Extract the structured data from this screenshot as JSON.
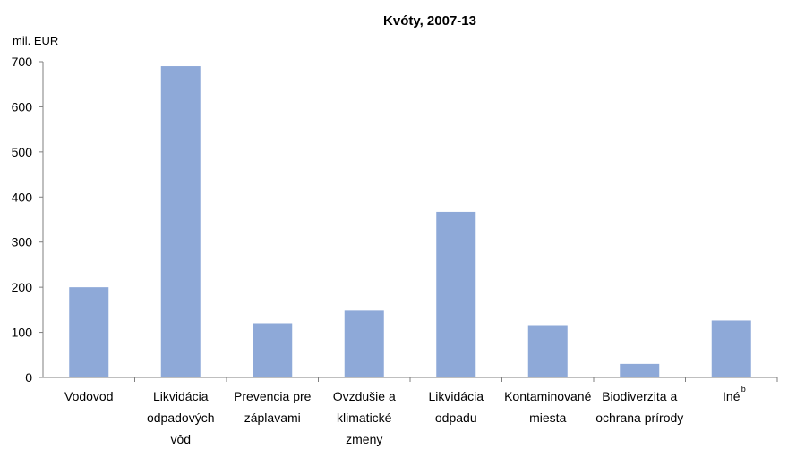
{
  "chart_data": {
    "type": "bar",
    "title": "Kvóty, 2007-13",
    "ylabel": "mil. EUR",
    "xlabel": "",
    "ylim": [
      0,
      700
    ],
    "yticks": [
      "0",
      "100",
      "200",
      "300",
      "400",
      "500",
      "600",
      "700"
    ],
    "categories": [
      [
        "Vodovod"
      ],
      [
        "Likvidácia",
        "odpadových",
        "vôd"
      ],
      [
        "Prevencia pre",
        "záplavami"
      ],
      [
        "Ovzdušie a",
        "klimatické",
        "zmeny"
      ],
      [
        "Likvidácia",
        "odpadu"
      ],
      [
        "Kontaminované",
        "miesta"
      ],
      [
        "Biodiverzita a",
        "ochrana prírody"
      ],
      [
        "Iné"
      ]
    ],
    "category_superscripts": [
      "",
      "",
      "",
      "",
      "",
      "",
      "",
      "b"
    ],
    "values": [
      200,
      690,
      120,
      148,
      367,
      116,
      30,
      126
    ],
    "bar_color": "#8EA9D8",
    "grid": false
  }
}
